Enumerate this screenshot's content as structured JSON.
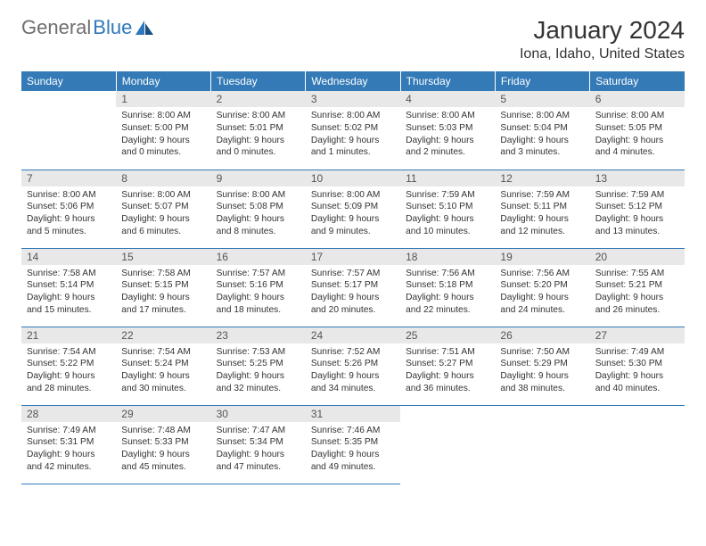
{
  "brand": {
    "part1": "General",
    "part2": "Blue"
  },
  "title": "January 2024",
  "location": "Iona, Idaho, United States",
  "header_bg": "#337ab7",
  "header_text_color": "#ffffff",
  "daynum_bg": "#e8e8e8",
  "row_border": "#337ab7",
  "days": [
    "Sunday",
    "Monday",
    "Tuesday",
    "Wednesday",
    "Thursday",
    "Friday",
    "Saturday"
  ],
  "start_offset": 1,
  "cells": [
    {
      "n": 1,
      "sunrise": "8:00 AM",
      "sunset": "5:00 PM",
      "dh": 9,
      "dm": 0
    },
    {
      "n": 2,
      "sunrise": "8:00 AM",
      "sunset": "5:01 PM",
      "dh": 9,
      "dm": 0
    },
    {
      "n": 3,
      "sunrise": "8:00 AM",
      "sunset": "5:02 PM",
      "dh": 9,
      "dm": 1
    },
    {
      "n": 4,
      "sunrise": "8:00 AM",
      "sunset": "5:03 PM",
      "dh": 9,
      "dm": 2
    },
    {
      "n": 5,
      "sunrise": "8:00 AM",
      "sunset": "5:04 PM",
      "dh": 9,
      "dm": 3
    },
    {
      "n": 6,
      "sunrise": "8:00 AM",
      "sunset": "5:05 PM",
      "dh": 9,
      "dm": 4
    },
    {
      "n": 7,
      "sunrise": "8:00 AM",
      "sunset": "5:06 PM",
      "dh": 9,
      "dm": 5
    },
    {
      "n": 8,
      "sunrise": "8:00 AM",
      "sunset": "5:07 PM",
      "dh": 9,
      "dm": 6
    },
    {
      "n": 9,
      "sunrise": "8:00 AM",
      "sunset": "5:08 PM",
      "dh": 9,
      "dm": 8
    },
    {
      "n": 10,
      "sunrise": "8:00 AM",
      "sunset": "5:09 PM",
      "dh": 9,
      "dm": 9
    },
    {
      "n": 11,
      "sunrise": "7:59 AM",
      "sunset": "5:10 PM",
      "dh": 9,
      "dm": 10
    },
    {
      "n": 12,
      "sunrise": "7:59 AM",
      "sunset": "5:11 PM",
      "dh": 9,
      "dm": 12
    },
    {
      "n": 13,
      "sunrise": "7:59 AM",
      "sunset": "5:12 PM",
      "dh": 9,
      "dm": 13
    },
    {
      "n": 14,
      "sunrise": "7:58 AM",
      "sunset": "5:14 PM",
      "dh": 9,
      "dm": 15
    },
    {
      "n": 15,
      "sunrise": "7:58 AM",
      "sunset": "5:15 PM",
      "dh": 9,
      "dm": 17
    },
    {
      "n": 16,
      "sunrise": "7:57 AM",
      "sunset": "5:16 PM",
      "dh": 9,
      "dm": 18
    },
    {
      "n": 17,
      "sunrise": "7:57 AM",
      "sunset": "5:17 PM",
      "dh": 9,
      "dm": 20
    },
    {
      "n": 18,
      "sunrise": "7:56 AM",
      "sunset": "5:18 PM",
      "dh": 9,
      "dm": 22
    },
    {
      "n": 19,
      "sunrise": "7:56 AM",
      "sunset": "5:20 PM",
      "dh": 9,
      "dm": 24
    },
    {
      "n": 20,
      "sunrise": "7:55 AM",
      "sunset": "5:21 PM",
      "dh": 9,
      "dm": 26
    },
    {
      "n": 21,
      "sunrise": "7:54 AM",
      "sunset": "5:22 PM",
      "dh": 9,
      "dm": 28
    },
    {
      "n": 22,
      "sunrise": "7:54 AM",
      "sunset": "5:24 PM",
      "dh": 9,
      "dm": 30
    },
    {
      "n": 23,
      "sunrise": "7:53 AM",
      "sunset": "5:25 PM",
      "dh": 9,
      "dm": 32
    },
    {
      "n": 24,
      "sunrise": "7:52 AM",
      "sunset": "5:26 PM",
      "dh": 9,
      "dm": 34
    },
    {
      "n": 25,
      "sunrise": "7:51 AM",
      "sunset": "5:27 PM",
      "dh": 9,
      "dm": 36
    },
    {
      "n": 26,
      "sunrise": "7:50 AM",
      "sunset": "5:29 PM",
      "dh": 9,
      "dm": 38
    },
    {
      "n": 27,
      "sunrise": "7:49 AM",
      "sunset": "5:30 PM",
      "dh": 9,
      "dm": 40
    },
    {
      "n": 28,
      "sunrise": "7:49 AM",
      "sunset": "5:31 PM",
      "dh": 9,
      "dm": 42
    },
    {
      "n": 29,
      "sunrise": "7:48 AM",
      "sunset": "5:33 PM",
      "dh": 9,
      "dm": 45
    },
    {
      "n": 30,
      "sunrise": "7:47 AM",
      "sunset": "5:34 PM",
      "dh": 9,
      "dm": 47
    },
    {
      "n": 31,
      "sunrise": "7:46 AM",
      "sunset": "5:35 PM",
      "dh": 9,
      "dm": 49
    }
  ],
  "labels": {
    "sunrise": "Sunrise:",
    "sunset": "Sunset:",
    "daylight_prefix": "Daylight:",
    "hours_word": "hours",
    "and_word": "and",
    "minutes_word": "minutes."
  }
}
